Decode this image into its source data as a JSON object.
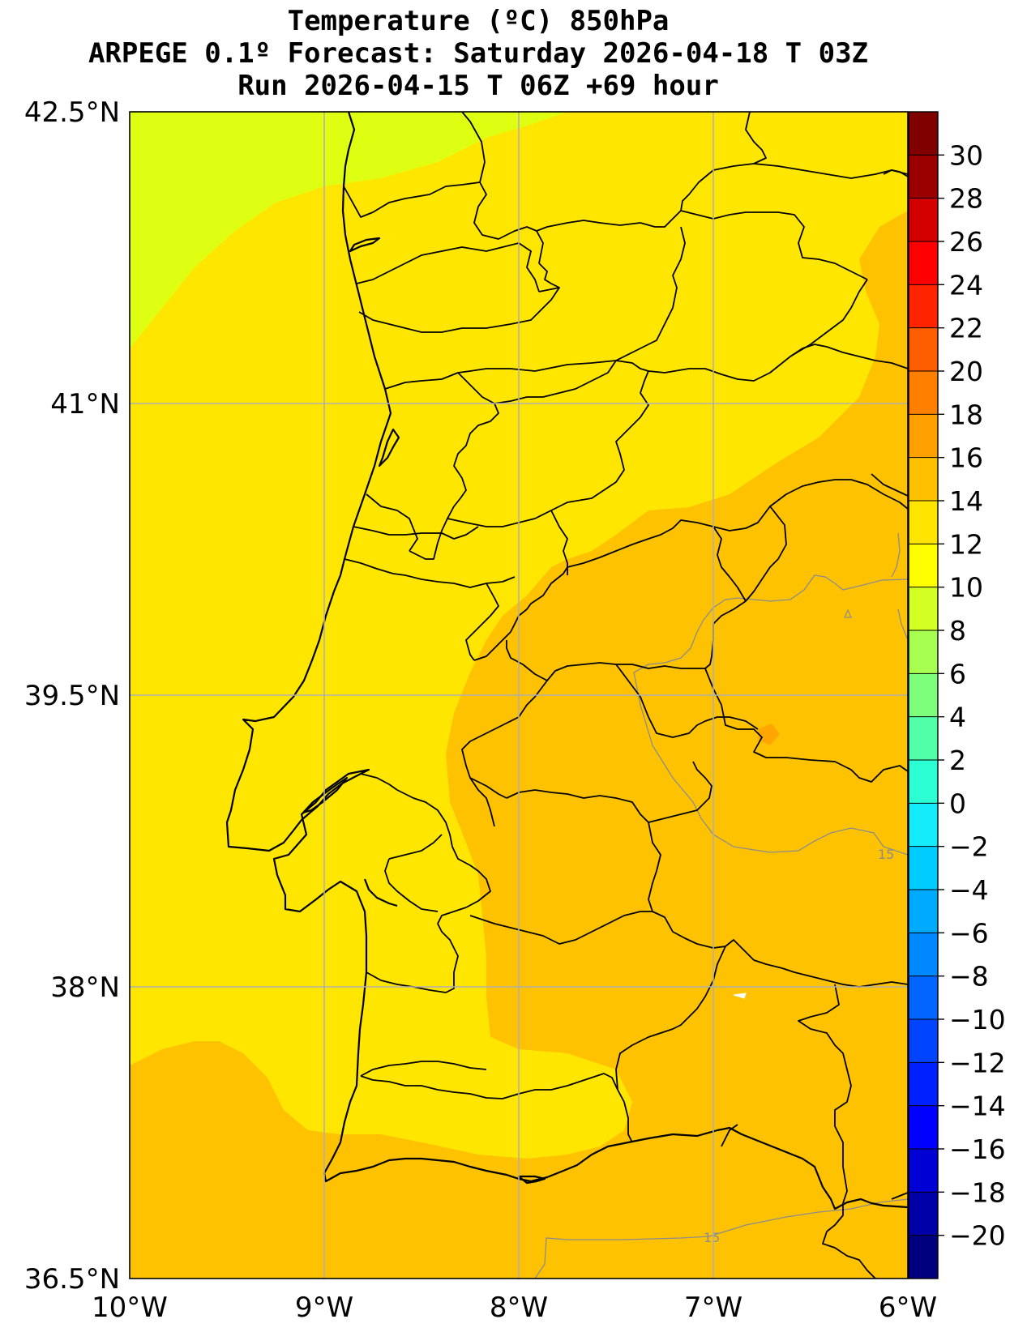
{
  "title": {
    "line1": "Temperature (ºC) 850hPa",
    "line2": "ARPEGE 0.1º Forecast: Saturday 2026-04-18 T 03Z",
    "line3": "Run 2026-04-15 T 06Z +69 hour"
  },
  "axes": {
    "lon_labels": [
      "10°W",
      "9°W",
      "8°W",
      "7°W",
      "6°W"
    ],
    "lat_labels": [
      "42.5°N",
      "41°N",
      "39.5°N",
      "38°N",
      "36.5°N"
    ],
    "lon_values": [
      -10,
      -9,
      -8,
      -7,
      -6
    ],
    "lat_values": [
      42.5,
      41,
      39.5,
      38,
      36.5
    ]
  },
  "colorbar": {
    "tick_labels": [
      "30",
      "28",
      "26",
      "24",
      "22",
      "20",
      "18",
      "16",
      "14",
      "12",
      "10",
      "8",
      "6",
      "4",
      "2",
      "0",
      "−2",
      "−4",
      "−6",
      "−8",
      "−10",
      "−12",
      "−14",
      "−16",
      "−18",
      "−20"
    ],
    "levels": [
      -22,
      -20,
      -18,
      -16,
      -14,
      -12,
      -10,
      -8,
      -6,
      -4,
      -2,
      0,
      2,
      4,
      6,
      8,
      10,
      12,
      14,
      16,
      18,
      20,
      22,
      24,
      26,
      28,
      30,
      32
    ],
    "colors": [
      "#00007f",
      "#0000a8",
      "#0000d4",
      "#0000ff",
      "#0020ff",
      "#0044ff",
      "#0066ff",
      "#0088ff",
      "#00aaff",
      "#00ccff",
      "#14ecfc",
      "#2cffd3",
      "#50ffa7",
      "#7dff7b",
      "#a7ff50",
      "#d4ff23",
      "#ffff00",
      "#ffe500",
      "#ffc000",
      "#ffa000",
      "#ff8000",
      "#ff5e00",
      "#ff2400",
      "#ff0000",
      "#d40000",
      "#9a0000",
      "#800000"
    ]
  },
  "contour_labels": [
    "15",
    "15"
  ],
  "fields": {
    "cool_zone_color": "#dfff12",
    "mid_zone_color": "#ffe600",
    "warm_zone_color": "#ffc200",
    "hot_spot_color": "#ffa600",
    "contour_color": "#8c8c8c"
  }
}
